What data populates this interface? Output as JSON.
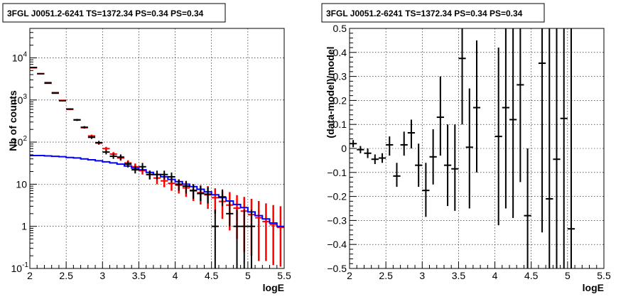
{
  "chart_data": [
    {
      "type": "scatter",
      "title": "3FGL J0051.2-6241 TS=1372.34 PS=0.34 PS=0.34",
      "xlabel": "logE",
      "ylabel": "Nb of counts",
      "xlim": [
        2,
        5.5
      ],
      "ylim": [
        0.1,
        50000
      ],
      "yscale": "log",
      "grid": true,
      "x_ticks": [
        "2",
        "2.5",
        "3",
        "3.5",
        "4",
        "4.5",
        "5",
        "5.5"
      ],
      "y_ticks": [
        {
          "value": 0.1,
          "base": "10",
          "exp": "-1"
        },
        {
          "value": 1,
          "base": "1",
          "exp": ""
        },
        {
          "value": 10,
          "base": "10",
          "exp": ""
        },
        {
          "value": 100,
          "base": "10",
          "exp": "2"
        },
        {
          "value": 1000,
          "base": "10",
          "exp": "3"
        },
        {
          "value": 10000,
          "base": "10",
          "exp": "4"
        }
      ],
      "bin_width": 0.1,
      "series": [
        {
          "style": "model-total",
          "color": "#ff0000",
          "x": [
            2.05,
            2.15,
            2.25,
            2.35,
            2.45,
            2.55,
            2.65,
            2.75,
            2.85,
            2.95,
            3.05,
            3.15,
            3.25,
            3.35,
            3.45,
            3.55,
            3.65,
            3.75,
            3.85,
            3.95,
            4.05,
            4.15,
            4.25,
            4.35,
            4.45,
            4.55,
            4.65,
            4.75,
            4.85,
            4.95,
            5.05,
            5.15,
            5.25,
            5.35,
            5.45
          ],
          "y": [
            5800,
            4200,
            2600,
            1500,
            980,
            600,
            340,
            220,
            140,
            95,
            70,
            52,
            42,
            32,
            26,
            21,
            17,
            14,
            12,
            10.5,
            9.5,
            8.2,
            7.2,
            6.3,
            5.6,
            4.8,
            3.9,
            3.2,
            2.7,
            2.3,
            1.9,
            1.6,
            1.3,
            1.1,
            0.95
          ],
          "ylo": [
            5700,
            4100,
            2550,
            1470,
            960,
            580,
            325,
            210,
            130,
            88,
            63,
            46,
            36,
            27,
            21,
            17,
            13,
            10,
            8.5,
            7.0,
            6.0,
            5.0,
            4.0,
            3.3,
            2.6,
            2.0,
            1.5,
            0.8,
            0.5,
            0.25,
            0.2,
            0.15,
            0.15,
            0.12,
            0.11
          ],
          "yhi": [
            5900,
            4300,
            2650,
            1530,
            1000,
            620,
            355,
            230,
            150,
            102,
            77,
            58,
            48,
            37,
            31,
            25,
            21,
            18,
            16,
            14,
            13,
            11.5,
            10,
            9.5,
            9,
            8,
            7,
            6.5,
            5.5,
            5,
            4.5,
            4,
            3.5,
            3.2,
            3
          ]
        },
        {
          "style": "model-source",
          "color": "#0000ff",
          "x": [
            2.05,
            2.15,
            2.25,
            2.35,
            2.45,
            2.55,
            2.65,
            2.75,
            2.85,
            2.95,
            3.05,
            3.15,
            3.25,
            3.35,
            3.45,
            3.55,
            3.65,
            3.75,
            3.85,
            3.95,
            4.05,
            4.15,
            4.25,
            4.35,
            4.45,
            4.55,
            4.65,
            4.75,
            4.85,
            4.95,
            5.05,
            5.15,
            5.25,
            5.35,
            5.45
          ],
          "y": [
            48,
            48,
            47,
            46,
            45,
            43,
            42,
            40,
            38,
            36,
            34,
            32,
            30,
            27,
            24,
            22,
            19,
            17,
            15,
            13,
            11.5,
            10,
            8.8,
            7.6,
            6.6,
            5.6,
            4.8,
            4.0,
            3.3,
            2.8,
            2.2,
            1.8,
            1.5,
            1.2,
            1.0
          ]
        },
        {
          "style": "data",
          "color": "#000000",
          "x": [
            2.05,
            2.15,
            2.25,
            2.35,
            2.45,
            2.55,
            2.65,
            2.75,
            2.85,
            2.95,
            3.05,
            3.15,
            3.25,
            3.35,
            3.45,
            3.55,
            3.65,
            3.75,
            3.85,
            3.95,
            4.05,
            4.15,
            4.25,
            4.35,
            4.45,
            4.55,
            4.65,
            4.75,
            4.85,
            4.95,
            5.05
          ],
          "y": [
            5900,
            4200,
            2500,
            1450,
            960,
            610,
            335,
            225,
            130,
            97,
            58,
            46,
            44,
            30,
            22,
            26,
            17,
            17,
            17,
            15,
            10,
            9,
            7,
            6,
            5.8,
            1,
            5,
            2,
            1,
            1,
            1
          ],
          "ylo": [
            5800,
            4100,
            2450,
            1410,
            930,
            585,
            317,
            210,
            119,
            87,
            51,
            40,
            38,
            25,
            18,
            21,
            13,
            13,
            13,
            11,
            7,
            6,
            4.5,
            4,
            3.5,
            0.1,
            3,
            1,
            0.1,
            0.1,
            0.1
          ],
          "yhi": [
            6000,
            4300,
            2550,
            1490,
            990,
            635,
            353,
            240,
            141,
            107,
            65,
            53,
            51,
            35,
            27,
            32,
            21,
            21,
            21,
            19,
            13,
            12,
            10,
            9,
            8.5,
            2.5,
            7.5,
            4,
            2.5,
            2.5,
            2.5
          ]
        }
      ]
    },
    {
      "type": "scatter",
      "title": "3FGL J0051.2-6241 TS=1372.34 PS=0.34 PS=0.34",
      "xlabel": "logE",
      "ylabel": "(data-model)/model",
      "xlim": [
        2,
        5.5
      ],
      "ylim": [
        -0.5,
        0.5
      ],
      "yscale": "linear",
      "grid": true,
      "x_ticks": [
        "2",
        "2.5",
        "3",
        "3.5",
        "4",
        "4.5",
        "5",
        "5.5"
      ],
      "y_ticks": [
        "−0.5",
        "−0.4",
        "−0.3",
        "−0.2",
        "−0.1",
        "0",
        "0.1",
        "0.2",
        "0.3",
        "0.4",
        "0.5"
      ],
      "y_tick_values": [
        -0.5,
        -0.4,
        -0.3,
        -0.2,
        -0.1,
        0,
        0.1,
        0.2,
        0.3,
        0.4,
        0.5
      ],
      "bin_width": 0.1,
      "series": [
        {
          "style": "residuals",
          "color": "#000000",
          "x": [
            2.05,
            2.15,
            2.25,
            2.35,
            2.45,
            2.55,
            2.65,
            2.75,
            2.85,
            2.95,
            3.05,
            3.15,
            3.25,
            3.35,
            3.45,
            3.55,
            3.65,
            3.75,
            4.05,
            4.15,
            4.25,
            4.35,
            4.45,
            4.65,
            4.75,
            4.85,
            4.95,
            5.05
          ],
          "y": [
            0.02,
            -0.005,
            -0.02,
            -0.045,
            -0.04,
            0.015,
            -0.115,
            0.015,
            0.065,
            -0.07,
            -0.175,
            -0.035,
            0.13,
            -0.07,
            -0.085,
            0.375,
            0.005,
            0.17,
            0.05,
            0.17,
            0.12,
            0.265,
            -0.28,
            0.355,
            -0.21,
            -0.045,
            0.125,
            -0.335
          ],
          "ylo": [
            0.005,
            -0.02,
            -0.04,
            -0.065,
            -0.06,
            -0.03,
            -0.16,
            -0.03,
            0.0,
            -0.16,
            -0.285,
            -0.15,
            -0.03,
            -0.24,
            -0.26,
            0.1,
            -0.25,
            -0.1,
            -0.32,
            -0.25,
            -0.29,
            -0.14,
            -0.5,
            -0.35,
            -0.5,
            -0.5,
            -0.5,
            -0.5
          ],
          "yhi": [
            0.035,
            0.01,
            0.0,
            -0.025,
            -0.02,
            0.05,
            -0.06,
            0.07,
            0.12,
            0.02,
            -0.06,
            0.08,
            0.3,
            0.1,
            0.1,
            0.5,
            0.25,
            0.45,
            0.42,
            0.5,
            0.5,
            0.5,
            0.0,
            0.5,
            0.5,
            0.5,
            0.5,
            0.5
          ]
        }
      ]
    }
  ]
}
